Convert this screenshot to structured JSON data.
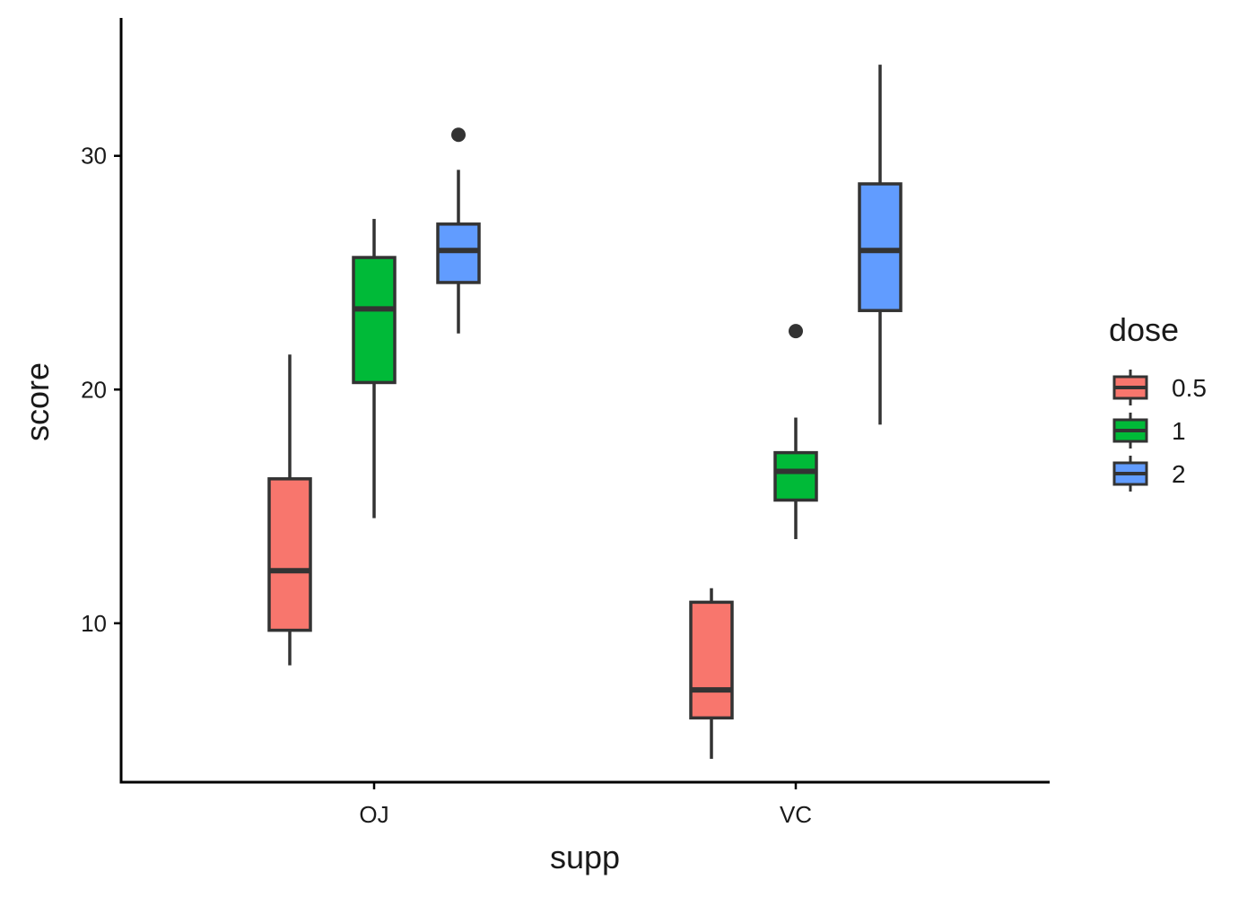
{
  "chart_data": {
    "type": "boxplot",
    "xlabel": "supp",
    "ylabel": "score",
    "categories": [
      "OJ",
      "VC"
    ],
    "ylim": [
      3.2,
      35.9
    ],
    "yticks": [
      10,
      20,
      30
    ],
    "yticklabels": [
      "10",
      "20",
      "30"
    ],
    "grid": false,
    "legend": {
      "title": "dose",
      "position": "right",
      "entries": [
        {
          "label": "0.5",
          "color": "#F8766D"
        },
        {
          "label": "1",
          "color": "#00BA38"
        },
        {
          "label": "2",
          "color": "#619CFF"
        }
      ]
    },
    "series": [
      {
        "name": "0.5",
        "color": "#F8766D",
        "boxes": [
          {
            "category": "OJ",
            "whisker_low": 8.2,
            "q1": 9.7,
            "median": 12.25,
            "q3": 16.18,
            "whisker_high": 21.5,
            "outliers": []
          },
          {
            "category": "VC",
            "whisker_low": 4.2,
            "q1": 5.95,
            "median": 7.15,
            "q3": 10.9,
            "whisker_high": 11.5,
            "outliers": []
          }
        ]
      },
      {
        "name": "1",
        "color": "#00BA38",
        "boxes": [
          {
            "category": "OJ",
            "whisker_low": 14.5,
            "q1": 20.3,
            "median": 23.45,
            "q3": 25.65,
            "whisker_high": 27.3,
            "outliers": []
          },
          {
            "category": "VC",
            "whisker_low": 13.6,
            "q1": 15.27,
            "median": 16.5,
            "q3": 17.3,
            "whisker_high": 18.8,
            "outliers": [
              22.5
            ]
          }
        ]
      },
      {
        "name": "2",
        "color": "#619CFF",
        "boxes": [
          {
            "category": "OJ",
            "whisker_low": 22.4,
            "q1": 24.58,
            "median": 25.95,
            "q3": 27.08,
            "whisker_high": 29.4,
            "outliers": [
              30.9
            ]
          },
          {
            "category": "VC",
            "whisker_low": 18.5,
            "q1": 23.38,
            "median": 25.95,
            "q3": 28.8,
            "whisker_high": 33.9,
            "outliers": []
          }
        ]
      }
    ]
  }
}
